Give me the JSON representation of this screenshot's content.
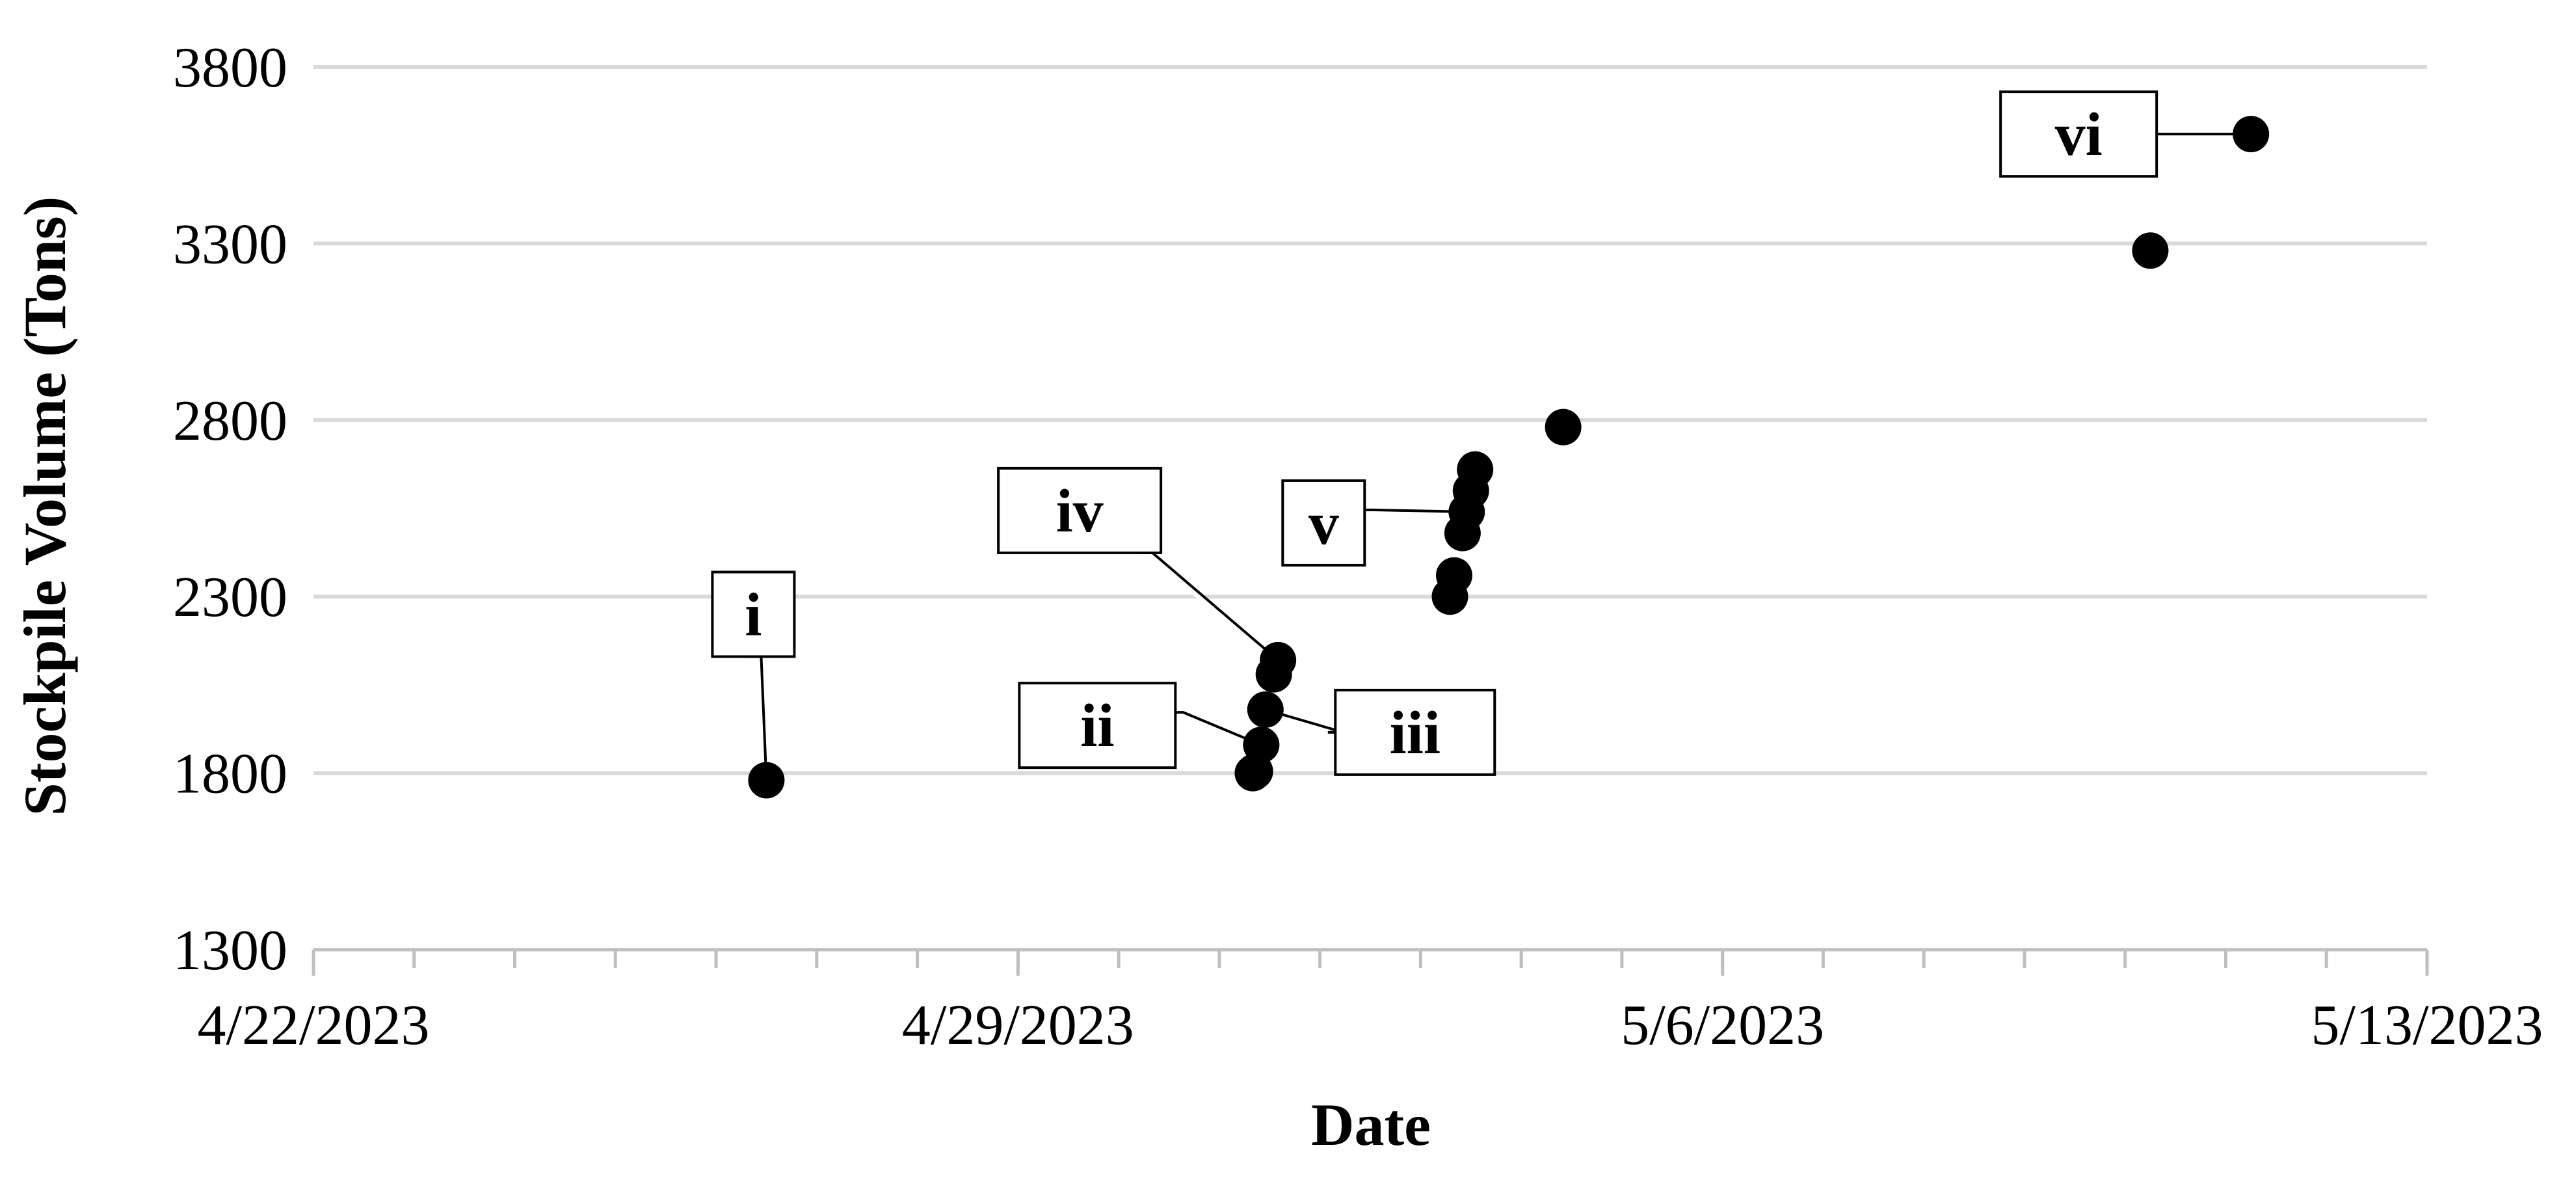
{
  "chart_data": {
    "type": "scatter",
    "title": "",
    "xlabel": "Date",
    "ylabel": "Stockpile Volume (Tons)",
    "x_axis": {
      "type": "date",
      "min": "2023-04-22",
      "max": "2023-05-13",
      "tick_labels": [
        "4/22/2023",
        "4/29/2023",
        "5/6/2023",
        "5/13/2023"
      ],
      "tick_dates": [
        "2023-04-22",
        "2023-04-29",
        "2023-05-06",
        "2023-05-13"
      ],
      "minor_tick_interval_days": 1
    },
    "y_axis": {
      "min": 1300,
      "max": 3800,
      "ticks": [
        1300,
        1800,
        2300,
        2800,
        3300,
        3800
      ],
      "tick_labels": [
        "1300",
        "1800",
        "2300",
        "2800",
        "3300",
        "3800"
      ]
    },
    "grid": true,
    "legend": false,
    "marker_color": "#000000",
    "series": [
      {
        "points": [
          {
            "x": "2023-04-26 12:00",
            "y": 1780,
            "callout": "i"
          },
          {
            "x": "2023-05-01 08:00",
            "y": 1800
          },
          {
            "x": "2023-05-01 08:30",
            "y": 1805
          },
          {
            "x": "2023-05-01 10:00",
            "y": 1880,
            "callout": "ii"
          },
          {
            "x": "2023-05-01 11:00",
            "y": 1980,
            "callout": "iii"
          },
          {
            "x": "2023-05-01 13:00",
            "y": 2080
          },
          {
            "x": "2023-05-01 14:00",
            "y": 2120,
            "callout": "iv"
          },
          {
            "x": "2023-05-03 07:00",
            "y": 2300
          },
          {
            "x": "2023-05-03 08:00",
            "y": 2360
          },
          {
            "x": "2023-05-03 10:00",
            "y": 2480
          },
          {
            "x": "2023-05-03 11:00",
            "y": 2540,
            "callout": "v"
          },
          {
            "x": "2023-05-03 12:00",
            "y": 2600
          },
          {
            "x": "2023-05-03 13:00",
            "y": 2660
          },
          {
            "x": "2023-05-04 10:00",
            "y": 2780
          },
          {
            "x": "2023-05-10 06:00",
            "y": 3280
          },
          {
            "x": "2023-05-11 06:00",
            "y": 3610,
            "callout": "vi"
          }
        ]
      }
    ],
    "annotations": [
      {
        "text": "i",
        "points_to": 0
      },
      {
        "text": "ii",
        "points_to": 3
      },
      {
        "text": "iii",
        "points_to": 4
      },
      {
        "text": "iv",
        "points_to": 6
      },
      {
        "text": "v",
        "points_to": 10
      },
      {
        "text": "vi",
        "points_to": 15
      }
    ]
  }
}
